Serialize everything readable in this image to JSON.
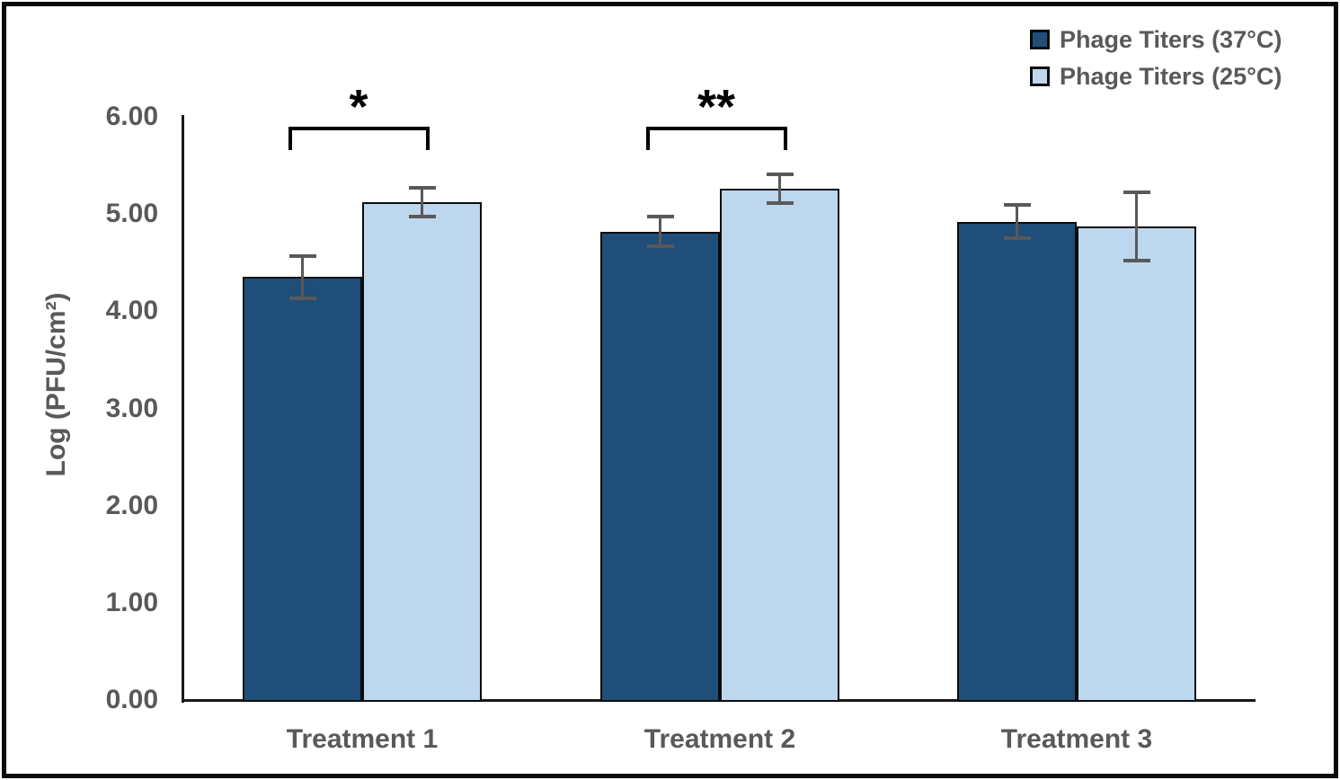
{
  "chart_data": {
    "type": "bar",
    "title": "",
    "categories": [
      "Treatment 1",
      "Treatment 2",
      "Treatment 3"
    ],
    "series": [
      {
        "name": "Phage Titers (37°C)",
        "color": "#1F4E79",
        "values": [
          4.35,
          4.82,
          4.92
        ],
        "errors": [
          0.22,
          0.15,
          0.17
        ]
      },
      {
        "name": "Phage Titers (25°C)",
        "color": "#BDD7EE",
        "values": [
          5.12,
          5.26,
          4.87
        ],
        "errors": [
          0.15,
          0.15,
          0.35
        ]
      }
    ],
    "xlabel": "",
    "ylabel": "Log (PFU/cm²)",
    "ylim": [
      0,
      6
    ],
    "yticks": [
      "0.00",
      "1.00",
      "2.00",
      "3.00",
      "4.00",
      "5.00",
      "6.00"
    ],
    "grid": false,
    "legend_position": "top-right",
    "annotations": [
      {
        "label": "*",
        "category_index": 0,
        "between_series": [
          0,
          1
        ]
      },
      {
        "label": "**",
        "category_index": 1,
        "between_series": [
          0,
          1
        ]
      }
    ],
    "colors": {
      "bar_outline": "#0c0c0c",
      "error_bar": "#595959",
      "axis_line": "#1a1a1a",
      "text": "#595959",
      "annotation": "#000000",
      "figure_border": "#0a0a0a",
      "background": "#ffffff"
    }
  }
}
